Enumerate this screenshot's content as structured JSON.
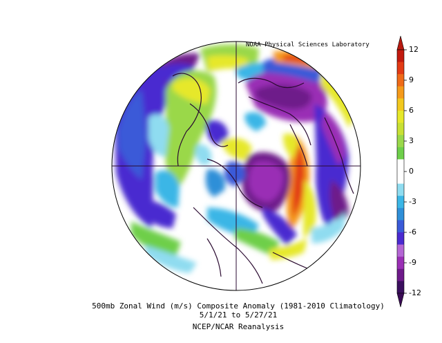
{
  "header": {
    "credit": "NOAA Physical Sciences Laboratory"
  },
  "caption": {
    "line1": "500mb Zonal Wind (m/s) Composite Anomaly (1981-2010 Climatology)",
    "line2": "5/1/21  to 5/27/21",
    "line3": "NCEP/NCAR Reanalysis"
  },
  "colorbar": {
    "ticks": [
      "12",
      "9",
      "6",
      "3",
      "0",
      "-3",
      "-6",
      "-9",
      "-12"
    ],
    "colors": [
      "#3b0f5e",
      "#6e1a8a",
      "#9a2fb5",
      "#b466d4",
      "#4a2ad0",
      "#3a5ad8",
      "#2f8fd8",
      "#3bb6e6",
      "#8fdcf0",
      "#ffffff",
      "#ffffff",
      "#6ecf4a",
      "#9ad84a",
      "#c8e034",
      "#e6e82a",
      "#f2c81e",
      "#f59a1a",
      "#ef6a18",
      "#e23a14",
      "#c21a0e"
    ],
    "top_color": "#b81a10",
    "bottom_color": "#3a0a55"
  }
}
